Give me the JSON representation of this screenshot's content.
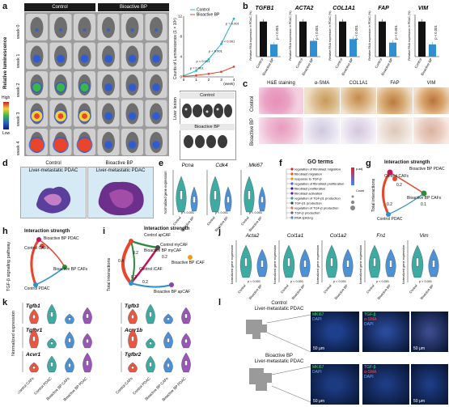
{
  "panels": {
    "a": "a",
    "b": "b",
    "c": "c",
    "d": "d",
    "e": "e",
    "f": "f",
    "g": "g",
    "h": "h",
    "i": "i",
    "j": "j",
    "k": "k",
    "l": "l"
  },
  "a": {
    "headers": [
      "Control",
      "Bioactive BP"
    ],
    "weeks": [
      "week 0",
      "week 1",
      "week 2",
      "week 3",
      "week 4"
    ],
    "ylabel": "Relative luminescence",
    "scale_high": "High",
    "scale_low": "Low",
    "liver_label": "Liver lesion",
    "liver_control": "Control",
    "liver_bp": "Bioactive BP"
  },
  "chart_data": [
    {
      "type": "line",
      "x": [
        0,
        1,
        2,
        3,
        4
      ],
      "series": [
        {
          "name": "Control",
          "values": [
            0.2,
            1.2,
            3.5,
            6.5,
            11.5
          ]
        },
        {
          "name": "Bioactive BP",
          "values": [
            0.1,
            0.3,
            0.6,
            1.0,
            2.0
          ]
        }
      ],
      "xlabel": "(week)",
      "ylabel": "Counts of Luminescence (1 × 10⁶)",
      "ylim": [
        0,
        12
      ],
      "yticks": [
        0,
        4,
        8,
        12
      ],
      "annotations": [
        "p = 0.001",
        "p < 0.001",
        "p < 0.001",
        "p < 0.001",
        "p = 0.001"
      ]
    },
    {
      "type": "bar",
      "genes": [
        "TGFB1",
        "ACTA2",
        "COL1A1",
        "FAP",
        "VIM"
      ],
      "categories": [
        "Control",
        "Bioactive BP"
      ],
      "series": [
        {
          "gene": "TGFB1",
          "values": [
            1.0,
            0.35
          ]
        },
        {
          "gene": "ACTA2",
          "values": [
            1.0,
            0.45
          ]
        },
        {
          "gene": "COL1A1",
          "values": [
            1.0,
            0.5
          ]
        },
        {
          "gene": "FAP",
          "values": [
            1.0,
            0.4
          ]
        },
        {
          "gene": "VIM",
          "values": [
            1.0,
            0.35
          ]
        }
      ],
      "ylabel": "Relative RNA expression in PDAC (%)",
      "pvalue": "p < 0.001"
    }
  ],
  "c": {
    "columns": [
      "H&E staining",
      "α-SMA",
      "COL1A1",
      "FAP",
      "VIM"
    ],
    "rows": [
      "Control",
      "Bioactive BP"
    ]
  },
  "d": {
    "headers": [
      "Control",
      "Bioactive BP"
    ],
    "subheaders": [
      "Liver-metastatic PDAC",
      "Liver-metastatic PDAC"
    ]
  },
  "e": {
    "genes": [
      "Pcna",
      "Cdk4",
      "Mki67"
    ],
    "ylabel": "Normalized gene expression",
    "xlabels": [
      "Control",
      "Bioactive BP"
    ],
    "pvalue": "p < 0.001"
  },
  "f": {
    "title": "GO terms",
    "terms": [
      "regulation of fibroblast migration",
      "fibroblast migration",
      "response to TGF-β",
      "regulation of fibroblast proliferation",
      "fibroblast proliferation",
      "fibroblast activation",
      "regulation of TGF-β1 production",
      "TGF-β1 production",
      "regulation of TGF-β production",
      "TGF-β production",
      "RNA splicing"
    ],
    "legend": [
      "Count",
      "p.adj"
    ]
  },
  "g": {
    "title": "Interaction strength",
    "ylabel": "Total interactions",
    "nodes": [
      "Bioactive BP PDAC",
      "Control CAFs",
      "Bioactive BP CAFs",
      "Control PDAC"
    ],
    "values": [
      "0.2",
      "0.2",
      "0.1"
    ]
  },
  "h": {
    "title": "Interaction strength",
    "ylabel": "TGF-β signaling pathway",
    "nodes": [
      "Bioactive BP PDAC",
      "Control CAFs",
      "Bioactive BP CAFs",
      "Control PDAC"
    ]
  },
  "i": {
    "title": "Interaction strength",
    "ylabel": "Total interactions",
    "nodes": [
      "Control apCAF",
      "Control myCAF",
      "Bioactive BP myCAF",
      "Control iCAF",
      "Bioactive BP iCAF",
      "Bioactive BP apCAF"
    ],
    "values": [
      "0.4",
      "0.2",
      "0.2",
      "0.2",
      "0.2"
    ]
  },
  "j": {
    "genes": [
      "Acta2",
      "Col1a1",
      "Col1a2",
      "Fn1",
      "Vim"
    ],
    "ylabel": "Normalized gene expression",
    "xlabels": [
      "Control",
      "Bioactive BP"
    ],
    "pvalue": "p < 0.001"
  },
  "k": {
    "genes_left": [
      "Tgfb1",
      "Tgfbr1",
      "Acvr1"
    ],
    "genes_right": [
      "Tgfb3",
      "Acvr1b",
      "Tgfbr2"
    ],
    "ylabel": "Normalized expression",
    "groups": [
      "Control CAFs",
      "Control PDAC",
      "Bioactive BP CAFs",
      "Bioactive BP PDAC"
    ]
  },
  "l": {
    "control_title": "Control",
    "control_sub": "Liver-metastatic PDAC",
    "bp_title": "Bioactive BP",
    "bp_sub": "Liver-metastatic PDAC",
    "stains1": [
      "MKI67",
      "DAPI"
    ],
    "stains2": [
      "TGF-β",
      "α-SMA",
      "DAPI"
    ],
    "scalebar": "50 μm"
  },
  "colors": {
    "control": "#27b6c9",
    "bp": "#e8452c",
    "bar_control": "#111111",
    "bar_bp": "#2e8fd1",
    "violin_control": "#2aa198",
    "violin_bp": "#3a86d0"
  }
}
